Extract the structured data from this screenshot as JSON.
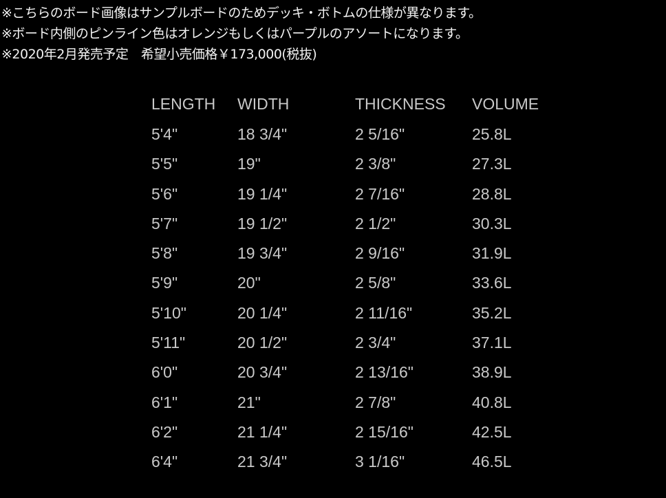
{
  "notes": [
    "※こちらのボード画像はサンプルボードのためデッキ・ボトムの仕様が異なります。",
    "※ボード内側のピンライン色はオレンジもしくはパープルのアソートになります。",
    "※2020年2月発売予定　希望小売価格￥173,000(税抜)"
  ],
  "table": {
    "headers": [
      "LENGTH",
      "WIDTH",
      "THICKNESS",
      "VOLUME"
    ],
    "rows": [
      [
        "5'4\"",
        "18 3/4\"",
        "2 5/16\"",
        "25.8L"
      ],
      [
        "5'5\"",
        "19\"",
        "2 3/8\"",
        "27.3L"
      ],
      [
        "5'6\"",
        "19 1/4\"",
        "2 7/16\"",
        "28.8L"
      ],
      [
        "5'7\"",
        "19 1/2\"",
        "2 1/2\"",
        "30.3L"
      ],
      [
        "5'8\"",
        "19 3/4\"",
        "2 9/16\"",
        "31.9L"
      ],
      [
        "5'9\"",
        "20\"",
        "2 5/8\"",
        "33.6L"
      ],
      [
        "5'10\"",
        "20 1/4\"",
        "2 11/16\"",
        "35.2L"
      ],
      [
        "5'11\"",
        "20 1/2\"",
        "2 3/4\"",
        "37.1L"
      ],
      [
        "6'0\"",
        "20 3/4\"",
        "2 13/16\"",
        "38.9L"
      ],
      [
        "6'1\"",
        "21\"",
        "2 7/8\"",
        "40.8L"
      ],
      [
        "6'2\"",
        "21 1/4\"",
        "2 15/16\"",
        "42.5L"
      ],
      [
        "6'4\"",
        "21 3/4\"",
        "3 1/16\"",
        "46.5L"
      ]
    ]
  }
}
